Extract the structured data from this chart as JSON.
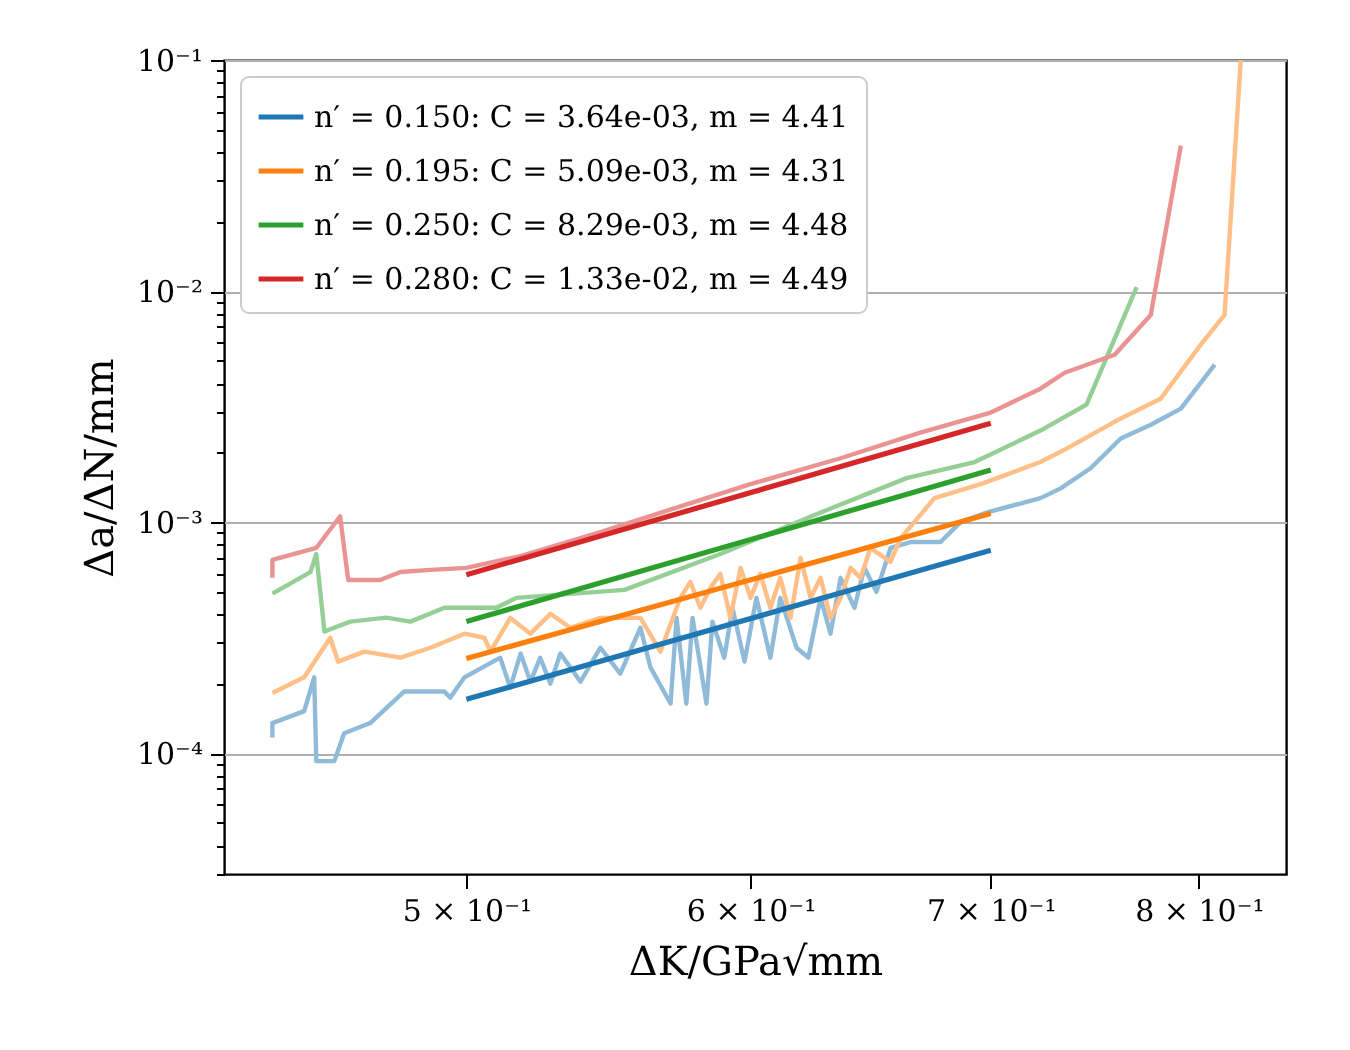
{
  "chart_data": {
    "type": "line",
    "xlabel": "ΔK/GPa√mm",
    "ylabel": "Δa/ΔN/mm",
    "log": "xy",
    "grid": "y",
    "legend": "top left",
    "line_style": "solid",
    "xlim": [
      0.428,
      0.846
    ],
    "ylim": [
      3e-05,
      0.1
    ],
    "xticks": [
      {
        "value": 0.5,
        "label": "5 × 10⁻¹"
      },
      {
        "value": 0.6,
        "label": "6 × 10⁻¹"
      },
      {
        "value": 0.7,
        "label": "7 × 10⁻¹"
      },
      {
        "value": 0.8,
        "label": "8 × 10⁻¹"
      }
    ],
    "yticks": [
      {
        "value": 3e-05,
        "label": null
      },
      {
        "value": 4e-05,
        "label": null
      },
      {
        "value": 5e-05,
        "label": null
      },
      {
        "value": 6e-05,
        "label": null
      },
      {
        "value": 7e-05,
        "label": null
      },
      {
        "value": 8e-05,
        "label": null
      },
      {
        "value": 9e-05,
        "label": null
      },
      {
        "value": 0.0001,
        "label": "10⁻⁴"
      },
      {
        "value": 0.0002,
        "label": null
      },
      {
        "value": 0.0003,
        "label": null
      },
      {
        "value": 0.0004,
        "label": null
      },
      {
        "value": 0.0005,
        "label": null
      },
      {
        "value": 0.0006,
        "label": null
      },
      {
        "value": 0.0007,
        "label": null
      },
      {
        "value": 0.0008,
        "label": null
      },
      {
        "value": 0.0009,
        "label": null
      },
      {
        "value": 0.001,
        "label": "10⁻³"
      },
      {
        "value": 0.002,
        "label": null
      },
      {
        "value": 0.003,
        "label": null
      },
      {
        "value": 0.004,
        "label": null
      },
      {
        "value": 0.005,
        "label": null
      },
      {
        "value": 0.006,
        "label": null
      },
      {
        "value": 0.007,
        "label": null
      },
      {
        "value": 0.008,
        "label": null
      },
      {
        "value": 0.009,
        "label": null
      },
      {
        "value": 0.01,
        "label": "10⁻²"
      },
      {
        "value": 0.02,
        "label": null
      },
      {
        "value": 0.03,
        "label": null
      },
      {
        "value": 0.04,
        "label": null
      },
      {
        "value": 0.05,
        "label": null
      },
      {
        "value": 0.06,
        "label": null
      },
      {
        "value": 0.07,
        "label": null
      },
      {
        "value": 0.08,
        "label": null
      },
      {
        "value": 0.09,
        "label": null
      },
      {
        "value": 0.1,
        "label": "10⁻¹"
      }
    ],
    "series": [
      {
        "color": "#8fbbd9",
        "x": [
          0.4415,
          0.4415,
          0.4506,
          0.4535,
          0.4541,
          0.4594,
          0.4623,
          0.4701,
          0.4805,
          0.493,
          0.4949,
          0.4994,
          0.511,
          0.5143,
          0.5177,
          0.521,
          0.5243,
          0.5277,
          0.5311,
          0.538,
          0.5449,
          0.5519,
          0.5591,
          0.5627,
          0.57,
          0.5722,
          0.5758,
          0.5781,
          0.5833,
          0.5855,
          0.59,
          0.5931,
          0.5977,
          0.6023,
          0.6077,
          0.6116,
          0.618,
          0.6227,
          0.6276,
          0.6316,
          0.6357,
          0.6414,
          0.6455,
          0.6505,
          0.6564,
          0.6649,
          0.6778,
          0.6866,
          0.6981,
          0.7227,
          0.7321,
          0.7463,
          0.7609,
          0.7757,
          0.7908,
          0.8082
        ],
        "values": [
          0.000117,
          0.000135,
          0.000152,
          0.000213,
          9.24e-05,
          9.24e-05,
          0.000122,
          0.000135,
          0.000185,
          0.000185,
          0.000174,
          0.000213,
          0.000259,
          0.000192,
          0.00027,
          0.000204,
          0.000259,
          0.0002,
          0.00027,
          0.000204,
          0.000286,
          0.000221,
          0.000349,
          0.000235,
          0.000164,
          0.000385,
          0.000164,
          0.000385,
          0.000164,
          0.000371,
          0.000259,
          0.000426,
          0.000249,
          0.00047,
          0.000259,
          0.00047,
          0.000286,
          0.000259,
          0.00047,
          0.000329,
          0.000574,
          0.000426,
          0.000634,
          0.000499,
          0.000773,
          0.00082,
          0.00082,
          0.001,
          0.0011,
          0.00127,
          0.0014,
          0.00171,
          0.0023,
          0.00264,
          0.0031,
          0.0048
        ]
      },
      {
        "color": "#ffbf86",
        "x": [
          0.4415,
          0.4506,
          0.4582,
          0.4605,
          0.4683,
          0.4793,
          0.4886,
          0.4994,
          0.5058,
          0.5078,
          0.5143,
          0.521,
          0.5277,
          0.5345,
          0.5449,
          0.5591,
          0.5663,
          0.5736,
          0.5773,
          0.581,
          0.5848,
          0.5885,
          0.5923,
          0.5962,
          0.6,
          0.6038,
          0.6077,
          0.6116,
          0.6156,
          0.6196,
          0.6236,
          0.6276,
          0.6316,
          0.6357,
          0.6398,
          0.6439,
          0.648,
          0.6564,
          0.6606,
          0.6665,
          0.6752,
          0.6955,
          0.7227,
          0.7349,
          0.7609,
          0.7806,
          0.8009,
          0.8133,
          0.8218
        ],
        "values": [
          0.000182,
          0.000213,
          0.000316,
          0.000249,
          0.000275,
          0.000259,
          0.000286,
          0.000329,
          0.000316,
          0.000275,
          0.000385,
          0.000329,
          0.000401,
          0.000349,
          0.000385,
          0.000385,
          0.000275,
          0.00047,
          0.000551,
          0.000426,
          0.00052,
          0.000597,
          0.000385,
          0.000634,
          0.00047,
          0.000597,
          0.000426,
          0.000574,
          0.000385,
          0.0007,
          0.00047,
          0.000574,
          0.000385,
          0.00047,
          0.000634,
          0.000574,
          0.000773,
          0.000673,
          0.000853,
          0.001,
          0.00127,
          0.00146,
          0.00182,
          0.00208,
          0.00281,
          0.00342,
          0.00585,
          0.00788,
          0.1
        ]
      },
      {
        "color": "#95cf95",
        "x": [
          0.4415,
          0.4524,
          0.4541,
          0.4565,
          0.4641,
          0.475,
          0.4824,
          0.493,
          0.5097,
          0.5163,
          0.5534,
          0.5885,
          0.6276,
          0.6632,
          0.6928,
          0.7227,
          0.7444,
          0.7687
        ],
        "values": [
          0.00049,
          0.000608,
          0.000728,
          0.000336,
          0.000371,
          0.000386,
          0.000371,
          0.000426,
          0.000426,
          0.00047,
          0.000509,
          0.000728,
          0.0011,
          0.00155,
          0.00182,
          0.00249,
          0.00323,
          0.0104
        ]
      },
      {
        "color": "#ea9393",
        "x": [
          0.4415,
          0.4415,
          0.4541,
          0.4611,
          0.4635,
          0.4731,
          0.4793,
          0.4886,
          0.5,
          0.5177,
          0.5449,
          0.5736,
          0.6,
          0.6357,
          0.6691,
          0.7,
          0.7227,
          0.734,
          0.7579,
          0.7757,
          0.7908
        ],
        "values": [
          0.000574,
          0.000686,
          0.000773,
          0.00106,
          0.000562,
          0.000562,
          0.000608,
          0.000621,
          0.000634,
          0.000713,
          0.000906,
          0.00117,
          0.00146,
          0.00189,
          0.00244,
          0.00298,
          0.00378,
          0.00443,
          0.0053,
          0.00788,
          0.0426
        ]
      },
      {
        "name": "n′ = 0.150: C = 3.64e-03, m = 4.41",
        "color": "#1f77b4",
        "x": [
          0.5,
          0.7
        ],
        "values": [
          0.000171,
          0.000755
        ]
      },
      {
        "name": "n′ = 0.195: C = 5.09e-03, m = 4.31",
        "color": "#ff7f0e",
        "x": [
          0.5,
          0.7
        ],
        "values": [
          0.000257,
          0.00109
        ]
      },
      {
        "name": "n′ = 0.250: C = 8.29e-03, m = 4.48",
        "color": "#2ca02c",
        "x": [
          0.5,
          0.7
        ],
        "values": [
          0.000371,
          0.00168
        ]
      },
      {
        "name": "n′ = 0.280: C = 1.33e-02, m = 4.49",
        "color": "#d62728",
        "x": [
          0.5,
          0.7
        ],
        "values": [
          0.000592,
          0.00268
        ]
      }
    ]
  }
}
